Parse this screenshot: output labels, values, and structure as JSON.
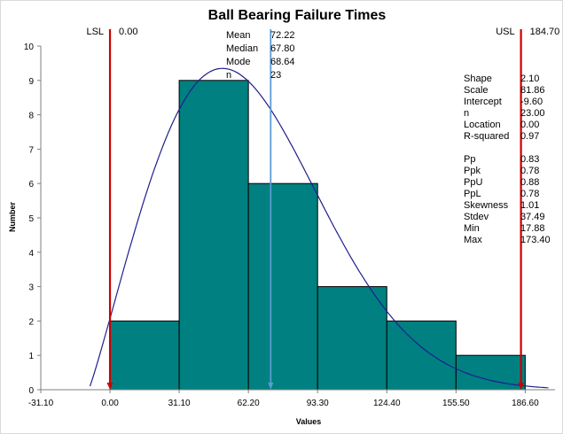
{
  "chart_data": {
    "type": "bar",
    "title": "Ball Bearing Failure Times",
    "xlabel": "Values",
    "ylabel": "Number",
    "xlim": [
      -31.1,
      200
    ],
    "ylim": [
      0,
      10
    ],
    "yticks": [
      0,
      1,
      2,
      3,
      4,
      5,
      6,
      7,
      8,
      9,
      10
    ],
    "xtick_values": [
      -31.1,
      0,
      31.1,
      62.2,
      93.3,
      124.4,
      155.5,
      186.6
    ],
    "xtick_labels": [
      "-31.10",
      "0.00",
      "31.10",
      "62.20",
      "93.30",
      "124.40",
      "155.50",
      "186.60"
    ],
    "bins": [
      {
        "start": 0.0,
        "end": 31.1,
        "count": 2
      },
      {
        "start": 31.1,
        "end": 62.2,
        "count": 9
      },
      {
        "start": 62.2,
        "end": 93.3,
        "count": 6
      },
      {
        "start": 93.3,
        "end": 124.4,
        "count": 3
      },
      {
        "start": 124.4,
        "end": 155.5,
        "count": 2
      },
      {
        "start": 155.5,
        "end": 186.6,
        "count": 1
      }
    ],
    "bar_color": "#008080",
    "curve_color": "#1f1f8f",
    "fit_curve": {
      "shape": 2.1,
      "scale": 81.86,
      "location": -9.6,
      "peak_count": 9.35
    },
    "lsl": {
      "label": "LSL",
      "value": 0.0,
      "value_text": "0.00",
      "color": "#cc0000"
    },
    "usl": {
      "label": "USL",
      "value": 184.7,
      "value_text": "184.70",
      "color": "#cc0000"
    },
    "mean_line": {
      "value": 72.22,
      "color": "#5b9bd5"
    },
    "stats_center": [
      {
        "label": "Mean",
        "value": "72.22"
      },
      {
        "label": "Median",
        "value": "67.80"
      },
      {
        "label": "Mode",
        "value": "68.64"
      },
      {
        "label": "n",
        "value": "23"
      }
    ],
    "stats_right_fit": [
      {
        "label": "Shape",
        "value": "2.10"
      },
      {
        "label": "Scale",
        "value": "81.86"
      },
      {
        "label": "Intercept",
        "value": "-9.60"
      },
      {
        "label": "n",
        "value": "23.00"
      },
      {
        "label": "Location",
        "value": "0.00"
      },
      {
        "label": "R-squared",
        "value": "0.97"
      }
    ],
    "stats_right_capability": [
      {
        "label": "Pp",
        "value": "0.83"
      },
      {
        "label": "Ppk",
        "value": "0.78"
      },
      {
        "label": "PpU",
        "value": "0.88"
      },
      {
        "label": "PpL",
        "value": "0.78"
      },
      {
        "label": "Skewness",
        "value": "1.01"
      },
      {
        "label": "Stdev",
        "value": "37.49"
      },
      {
        "label": "Min",
        "value": "17.88"
      },
      {
        "label": "Max",
        "value": "173.40"
      }
    ]
  }
}
